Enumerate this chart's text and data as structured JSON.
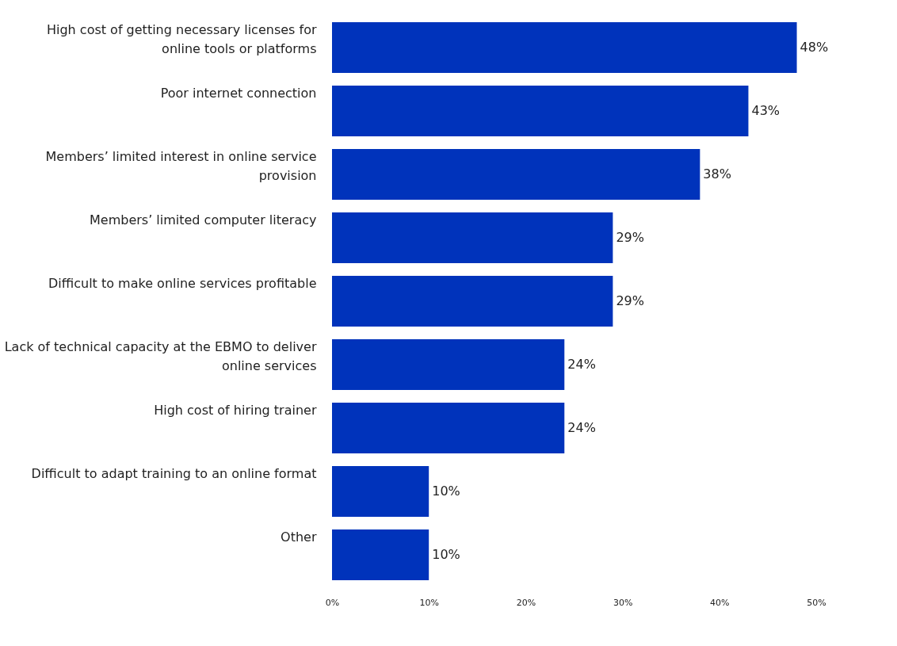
{
  "chart_data": {
    "type": "bar",
    "orientation": "horizontal",
    "categories": [
      "High cost of getting necessary licenses for online tools or platforms",
      "Poor internet connection",
      "Members’ limited interest in online service provision",
      "Members’ limited computer literacy",
      "Difficult to make online services profitable",
      "Lack of technical capacity at the EBMO to deliver online services",
      "High cost of hiring trainer",
      "Difficult to adapt training to an online format",
      "Other"
    ],
    "values": [
      48,
      43,
      38,
      29,
      29,
      24,
      24,
      10,
      10
    ],
    "value_labels": [
      "48%",
      "43%",
      "38%",
      "29%",
      "29%",
      "24%",
      "24%",
      "10%",
      "10%"
    ],
    "color": "#0033bb",
    "xlim": [
      0,
      50
    ],
    "xticks": [
      {
        "value": 0,
        "label": "0%"
      },
      {
        "value": 10,
        "label": "10%"
      },
      {
        "value": 20,
        "label": "20%"
      },
      {
        "value": 30,
        "label": "30%"
      },
      {
        "value": 40,
        "label": "40%"
      },
      {
        "value": 50,
        "label": "50%"
      }
    ],
    "grid": false
  }
}
